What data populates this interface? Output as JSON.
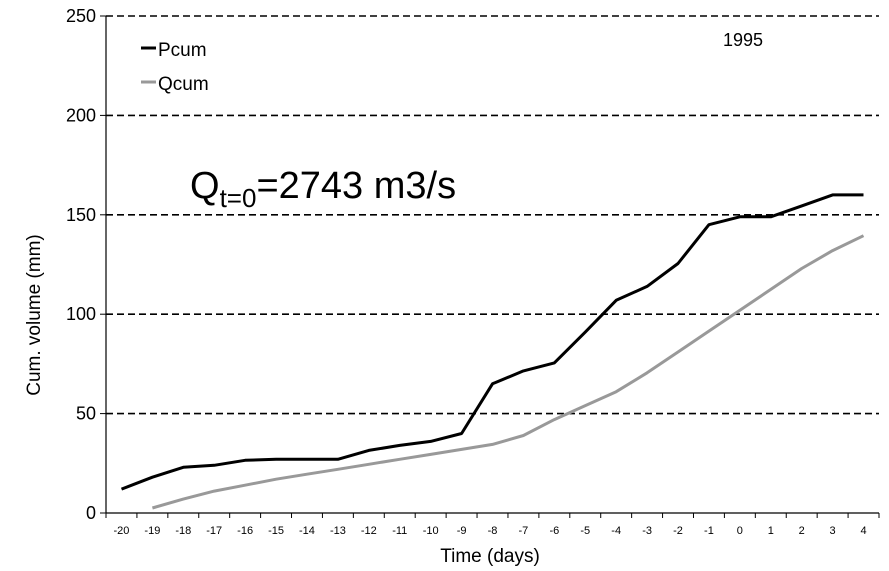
{
  "chart_data": {
    "type": "line",
    "xlabel": "Time (days)",
    "ylabel": "Cum. volume (mm)",
    "ylim": [
      0,
      250
    ],
    "yticks": [
      0,
      50,
      100,
      150,
      200,
      250
    ],
    "xlim": [
      -20,
      4
    ],
    "x": [
      -20,
      -19,
      -18,
      -17,
      -16,
      -15,
      -14,
      -13,
      -12,
      -11,
      -10,
      -9,
      -8,
      -7,
      -6,
      -5,
      -4,
      -3,
      -2,
      -1,
      0,
      1,
      2,
      3,
      4
    ],
    "grid": "horizontal dashed",
    "legend_position": "top-left",
    "annotation": {
      "year": "1995",
      "q_main": "Q",
      "q_sub": "t=0",
      "q_value": "=2743 m3/s"
    },
    "series": [
      {
        "name": "Pcum",
        "color": "#000000",
        "values": [
          12,
          18,
          23,
          24,
          26.5,
          27,
          27,
          27,
          31.5,
          34,
          36,
          40,
          65,
          71.5,
          75.5,
          91,
          107,
          114,
          125.5,
          145,
          149,
          149,
          154.5,
          160,
          160
        ]
      },
      {
        "name": "Qcum",
        "color": "#999999",
        "values": [
          null,
          2.5,
          7,
          11,
          14,
          17,
          19.5,
          22,
          24.5,
          27,
          29.5,
          32,
          34.5,
          39,
          47,
          54,
          61,
          70.5,
          81,
          91.5,
          102,
          112.5,
          123,
          132,
          139.5
        ]
      }
    ]
  }
}
